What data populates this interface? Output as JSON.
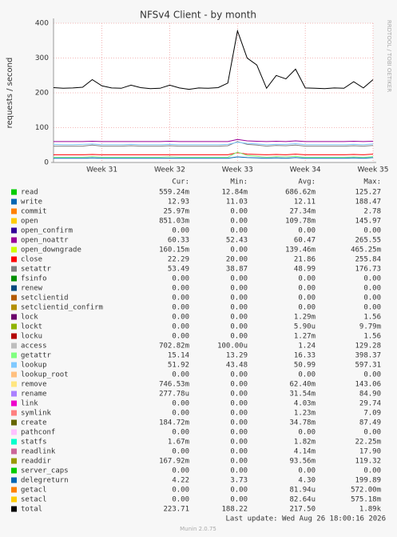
{
  "chart_data": {
    "type": "line",
    "title": "NFSv4 Client - by month",
    "y_label": "requests / second",
    "side_text": "RRDTOOL / TOBI OETIKER",
    "categories": [
      null,
      null,
      null,
      null,
      null,
      "Week 31",
      null,
      null,
      null,
      null,
      null,
      null,
      "Week 32",
      null,
      null,
      null,
      null,
      null,
      null,
      "Week 33",
      null,
      null,
      null,
      null,
      null,
      null,
      "Week 34",
      null,
      null,
      null,
      null,
      null,
      null,
      "Week 35"
    ],
    "ylim": [
      0,
      400
    ],
    "yticks": [
      0,
      100,
      200,
      300,
      400
    ],
    "grid": true,
    "columns": [
      "Cur:",
      "Min:",
      "Avg:",
      "Max:"
    ],
    "series": [
      {
        "name": "read",
        "color": "#00cc00",
        "stats": [
          "559.24m",
          "12.84m",
          "686.62m",
          "125.27"
        ]
      },
      {
        "name": "write",
        "color": "#0066b3",
        "stats": [
          "12.93",
          "11.03",
          "12.11",
          "188.47"
        ],
        "values": [
          12,
          12,
          12,
          12,
          13,
          12,
          12,
          12,
          12,
          12,
          12,
          12,
          12,
          12,
          12,
          12,
          12,
          12,
          12,
          16,
          14,
          13,
          12,
          13,
          12,
          14,
          12,
          12,
          12,
          12,
          12,
          13,
          12,
          14
        ]
      },
      {
        "name": "commit",
        "color": "#ff8000",
        "stats": [
          "25.97m",
          "0.00",
          "27.34m",
          "2.78"
        ]
      },
      {
        "name": "open",
        "color": "#ffcc00",
        "stats": [
          "851.03m",
          "0.00",
          "109.78m",
          "145.97"
        ]
      },
      {
        "name": "open_confirm",
        "color": "#330099",
        "stats": [
          "0.00",
          "0.00",
          "0.00",
          "0.00"
        ]
      },
      {
        "name": "open_noattr",
        "color": "#990099",
        "stats": [
          "60.33",
          "52.43",
          "60.47",
          "265.55"
        ],
        "values": [
          60,
          60,
          60,
          60,
          61,
          60,
          60,
          60,
          60,
          60,
          60,
          60,
          61,
          60,
          60,
          60,
          60,
          60,
          60,
          66,
          62,
          61,
          60,
          61,
          60,
          62,
          60,
          60,
          60,
          60,
          60,
          61,
          60,
          61
        ]
      },
      {
        "name": "open_downgrade",
        "color": "#ccff00",
        "stats": [
          "160.15m",
          "0.00",
          "139.46m",
          "465.25m"
        ]
      },
      {
        "name": "close",
        "color": "#ff0000",
        "stats": [
          "22.29",
          "20.00",
          "21.86",
          "255.84"
        ],
        "values": [
          22,
          22,
          22,
          22,
          23,
          22,
          22,
          22,
          22,
          22,
          22,
          22,
          22,
          22,
          22,
          22,
          22,
          22,
          22,
          28,
          24,
          23,
          22,
          23,
          22,
          24,
          22,
          22,
          22,
          22,
          22,
          23,
          22,
          24
        ]
      },
      {
        "name": "setattr",
        "color": "#808080",
        "stats": [
          "53.49",
          "38.87",
          "48.99",
          "176.73"
        ],
        "values": [
          47,
          47,
          47,
          47,
          50,
          47,
          47,
          47,
          48,
          47,
          47,
          47,
          48,
          47,
          47,
          47,
          47,
          47,
          48,
          60,
          52,
          50,
          47,
          49,
          48,
          50,
          47,
          47,
          47,
          47,
          47,
          48,
          47,
          49
        ]
      },
      {
        "name": "fsinfo",
        "color": "#008f00",
        "stats": [
          "0.00",
          "0.00",
          "0.00",
          "0.00"
        ]
      },
      {
        "name": "renew",
        "color": "#00487d",
        "stats": [
          "0.00",
          "0.00",
          "0.00",
          "0.00"
        ]
      },
      {
        "name": "setclientid",
        "color": "#b35a00",
        "stats": [
          "0.00",
          "0.00",
          "0.00",
          "0.00"
        ]
      },
      {
        "name": "setclientid_confirm",
        "color": "#b38f00",
        "stats": [
          "0.00",
          "0.00",
          "0.00",
          "0.00"
        ]
      },
      {
        "name": "lock",
        "color": "#6b006b",
        "stats": [
          "0.00",
          "0.00",
          "1.29m",
          "1.56"
        ]
      },
      {
        "name": "lockt",
        "color": "#8fb300",
        "stats": [
          "0.00",
          "0.00",
          "5.90u",
          "9.79m"
        ]
      },
      {
        "name": "locku",
        "color": "#b30000",
        "stats": [
          "0.00",
          "0.00",
          "1.27m",
          "1.56"
        ]
      },
      {
        "name": "access",
        "color": "#bebebe",
        "stats": [
          "702.82m",
          "100.00u",
          "1.24",
          "129.28"
        ]
      },
      {
        "name": "getattr",
        "color": "#80ff80",
        "stats": [
          "15.14",
          "13.29",
          "16.33",
          "398.37"
        ],
        "values": [
          15,
          15,
          15,
          15,
          17,
          15,
          15,
          15,
          15,
          15,
          15,
          15,
          16,
          15,
          15,
          15,
          15,
          15,
          15,
          30,
          20,
          18,
          15,
          17,
          16,
          18,
          15,
          15,
          15,
          15,
          15,
          16,
          15,
          17
        ]
      },
      {
        "name": "lookup",
        "color": "#80c9ff",
        "stats": [
          "51.92",
          "43.48",
          "50.99",
          "597.31"
        ],
        "values": [
          52,
          51,
          51,
          52,
          53,
          51,
          51,
          51,
          52,
          51,
          51,
          51,
          52,
          51,
          51,
          51,
          51,
          51,
          52,
          58,
          55,
          53,
          51,
          52,
          52,
          54,
          51,
          51,
          51,
          51,
          51,
          52,
          51,
          53
        ]
      },
      {
        "name": "lookup_root",
        "color": "#ffc080",
        "stats": [
          "0.00",
          "0.00",
          "0.00",
          "0.00"
        ]
      },
      {
        "name": "remove",
        "color": "#ffe680",
        "stats": [
          "746.53m",
          "0.00",
          "62.40m",
          "143.06"
        ]
      },
      {
        "name": "rename",
        "color": "#aa80ff",
        "stats": [
          "277.78u",
          "0.00",
          "31.54m",
          "84.90"
        ]
      },
      {
        "name": "link",
        "color": "#ee00cc",
        "stats": [
          "0.00",
          "0.00",
          "4.03m",
          "29.74"
        ]
      },
      {
        "name": "symlink",
        "color": "#ff8080",
        "stats": [
          "0.00",
          "0.00",
          "1.23m",
          "7.09"
        ]
      },
      {
        "name": "create",
        "color": "#666600",
        "stats": [
          "184.72m",
          "0.00",
          "34.78m",
          "87.49"
        ]
      },
      {
        "name": "pathconf",
        "color": "#ffbfff",
        "stats": [
          "0.00",
          "0.00",
          "0.00",
          "0.00"
        ]
      },
      {
        "name": "statfs",
        "color": "#00ffcc",
        "stats": [
          "1.67m",
          "0.00",
          "1.82m",
          "22.25m"
        ]
      },
      {
        "name": "readlink",
        "color": "#cc6699",
        "stats": [
          "0.00",
          "0.00",
          "4.14m",
          "17.90"
        ]
      },
      {
        "name": "readdir",
        "color": "#999900",
        "stats": [
          "167.92m",
          "0.00",
          "93.56m",
          "119.32"
        ]
      },
      {
        "name": "server_caps",
        "color": "#00cc00",
        "stats": [
          "0.00",
          "0.00",
          "0.00",
          "0.00"
        ]
      },
      {
        "name": "delegreturn",
        "color": "#0066b3",
        "stats": [
          "4.22",
          "3.73",
          "4.30",
          "199.89"
        ]
      },
      {
        "name": "getacl",
        "color": "#ff8000",
        "stats": [
          "0.00",
          "0.00",
          "81.94u",
          "572.00m"
        ]
      },
      {
        "name": "setacl",
        "color": "#ffcc00",
        "stats": [
          "0.00",
          "0.00",
          "82.64u",
          "575.18m"
        ]
      },
      {
        "name": "total",
        "color": "#000000",
        "stats": [
          "223.71",
          "188.22",
          "217.50",
          "1.89k"
        ],
        "values": [
          215,
          213,
          214,
          216,
          238,
          220,
          214,
          213,
          222,
          215,
          212,
          213,
          222,
          214,
          210,
          214,
          213,
          215,
          228,
          378,
          300,
          280,
          213,
          250,
          240,
          268,
          214,
          213,
          212,
          214,
          213,
          232,
          214,
          238
        ]
      }
    ],
    "last_update": "Last update: Wed Aug 26 18:00:16 2026",
    "footer": "Munin 2.0.75"
  }
}
